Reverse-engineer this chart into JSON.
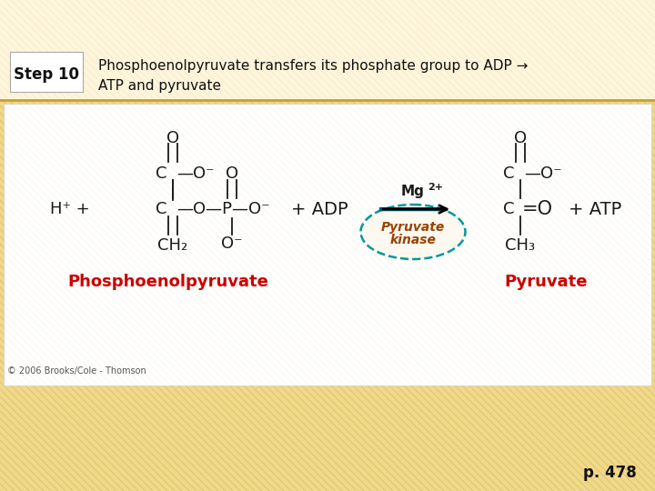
{
  "bg_color": "#f5e6c0",
  "bg_stripe_color": "#c8a030",
  "header_bg": "#fdf5dc",
  "header_line_color": "#c8a030",
  "step_label": "Step 10",
  "title_line1": "Phosphoenolpyruvate transfers its phosphate group to ADP →",
  "title_line2": "ATP and pyruvate",
  "diagram_bg": "#ffffff",
  "red_label_left": "Phosphoenolpyruvate",
  "red_label_right": "Pyruvate",
  "red_color": "#cc0000",
  "copyright": "© 2006 Brooks/Cole - Thomson",
  "page_num": "p. 478",
  "enzyme_text": "Pyruvate\nkinase",
  "enzyme_circle_color": "#009999",
  "mg_text": "Mg",
  "mg_super": "2+",
  "bond_color": "#1a1a1a",
  "text_color": "#1a1a1a"
}
